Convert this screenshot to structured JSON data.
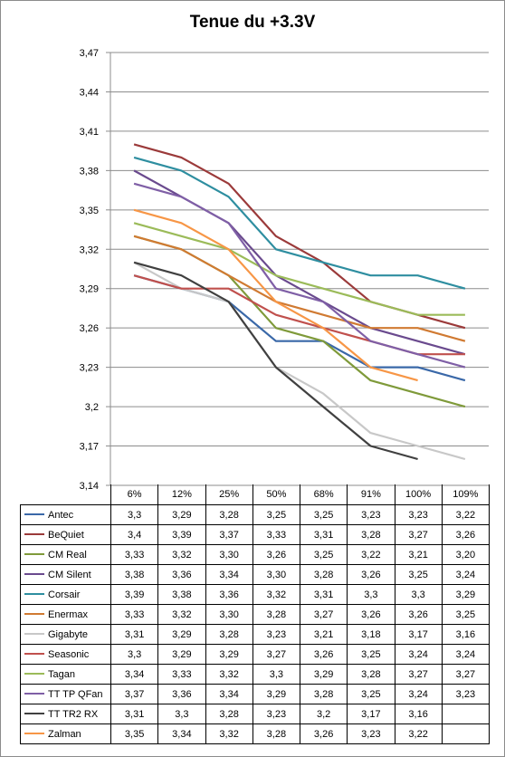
{
  "chart_data": {
    "type": "line",
    "title": "Tenue du +3.3V",
    "xlabel": "",
    "ylabel": "",
    "ylim": [
      3.14,
      3.47
    ],
    "y_ticks": [
      "3,14",
      "3,17",
      "3,2",
      "3,23",
      "3,26",
      "3,29",
      "3,32",
      "3,35",
      "3,38",
      "3,41",
      "3,44",
      "3,47"
    ],
    "y_tick_values": [
      3.14,
      3.17,
      3.2,
      3.23,
      3.26,
      3.29,
      3.32,
      3.35,
      3.38,
      3.41,
      3.44,
      3.47
    ],
    "categories": [
      "6%",
      "12%",
      "25%",
      "50%",
      "68%",
      "91%",
      "100%",
      "109%"
    ],
    "grid": "horizontal",
    "legend": "data-table",
    "series": [
      {
        "name": "Antec",
        "color": "#3a68a8",
        "values": [
          3.3,
          3.29,
          3.28,
          3.25,
          3.25,
          3.23,
          3.23,
          3.22
        ],
        "labels": [
          "3,3",
          "3,29",
          "3,28",
          "3,25",
          "3,25",
          "3,23",
          "3,23",
          "3,22"
        ]
      },
      {
        "name": "BeQuiet",
        "color": "#9b3a3a",
        "values": [
          3.4,
          3.39,
          3.37,
          3.33,
          3.31,
          3.28,
          3.27,
          3.26
        ],
        "labels": [
          "3,4",
          "3,39",
          "3,37",
          "3,33",
          "3,31",
          "3,28",
          "3,27",
          "3,26"
        ]
      },
      {
        "name": "CM Real",
        "color": "#7f9a3a",
        "values": [
          3.33,
          3.32,
          3.3,
          3.26,
          3.25,
          3.22,
          3.21,
          3.2
        ],
        "labels": [
          "3,33",
          "3,32",
          "3,30",
          "3,26",
          "3,25",
          "3,22",
          "3,21",
          "3,20"
        ]
      },
      {
        "name": "CM Silent",
        "color": "#6a4a8e",
        "values": [
          3.38,
          3.36,
          3.34,
          3.3,
          3.28,
          3.26,
          3.25,
          3.24
        ],
        "labels": [
          "3,38",
          "3,36",
          "3,34",
          "3,30",
          "3,28",
          "3,26",
          "3,25",
          "3,24"
        ]
      },
      {
        "name": "Corsair",
        "color": "#2e8ea0",
        "values": [
          3.39,
          3.38,
          3.36,
          3.32,
          3.31,
          3.3,
          3.3,
          3.29
        ],
        "labels": [
          "3,39",
          "3,38",
          "3,36",
          "3,32",
          "3,31",
          "3,3",
          "3,3",
          "3,29"
        ]
      },
      {
        "name": "Enermax",
        "color": "#d07a32",
        "values": [
          3.33,
          3.32,
          3.3,
          3.28,
          3.27,
          3.26,
          3.26,
          3.25
        ],
        "labels": [
          "3,33",
          "3,32",
          "3,30",
          "3,28",
          "3,27",
          "3,26",
          "3,26",
          "3,25"
        ]
      },
      {
        "name": "Gigabyte",
        "color": "#c8c8c8",
        "values": [
          3.31,
          3.29,
          3.28,
          3.23,
          3.21,
          3.18,
          3.17,
          3.16
        ],
        "labels": [
          "3,31",
          "3,29",
          "3,28",
          "3,23",
          "3,21",
          "3,18",
          "3,17",
          "3,16"
        ]
      },
      {
        "name": "Seasonic",
        "color": "#c0504d",
        "values": [
          3.3,
          3.29,
          3.29,
          3.27,
          3.26,
          3.25,
          3.24,
          3.24
        ],
        "labels": [
          "3,3",
          "3,29",
          "3,29",
          "3,27",
          "3,26",
          "3,25",
          "3,24",
          "3,24"
        ]
      },
      {
        "name": "Tagan",
        "color": "#9bbb59",
        "values": [
          3.34,
          3.33,
          3.32,
          3.3,
          3.29,
          3.28,
          3.27,
          3.27
        ],
        "labels": [
          "3,34",
          "3,33",
          "3,32",
          "3,3",
          "3,29",
          "3,28",
          "3,27",
          "3,27"
        ]
      },
      {
        "name": "TT TP QFan",
        "color": "#7f5fa6",
        "values": [
          3.37,
          3.36,
          3.34,
          3.29,
          3.28,
          3.25,
          3.24,
          3.23
        ],
        "labels": [
          "3,37",
          "3,36",
          "3,34",
          "3,29",
          "3,28",
          "3,25",
          "3,24",
          "3,23"
        ]
      },
      {
        "name": "TT TR2 RX",
        "color": "#404040",
        "values": [
          3.31,
          3.3,
          3.28,
          3.23,
          3.2,
          3.17,
          3.16,
          null
        ],
        "labels": [
          "3,31",
          "3,3",
          "3,28",
          "3,23",
          "3,2",
          "3,17",
          "3,16",
          ""
        ]
      },
      {
        "name": "Zalman",
        "color": "#f79646",
        "values": [
          3.35,
          3.34,
          3.32,
          3.28,
          3.26,
          3.23,
          3.22,
          null
        ],
        "labels": [
          "3,35",
          "3,34",
          "3,32",
          "3,28",
          "3,26",
          "3,23",
          "3,22",
          ""
        ]
      }
    ]
  }
}
